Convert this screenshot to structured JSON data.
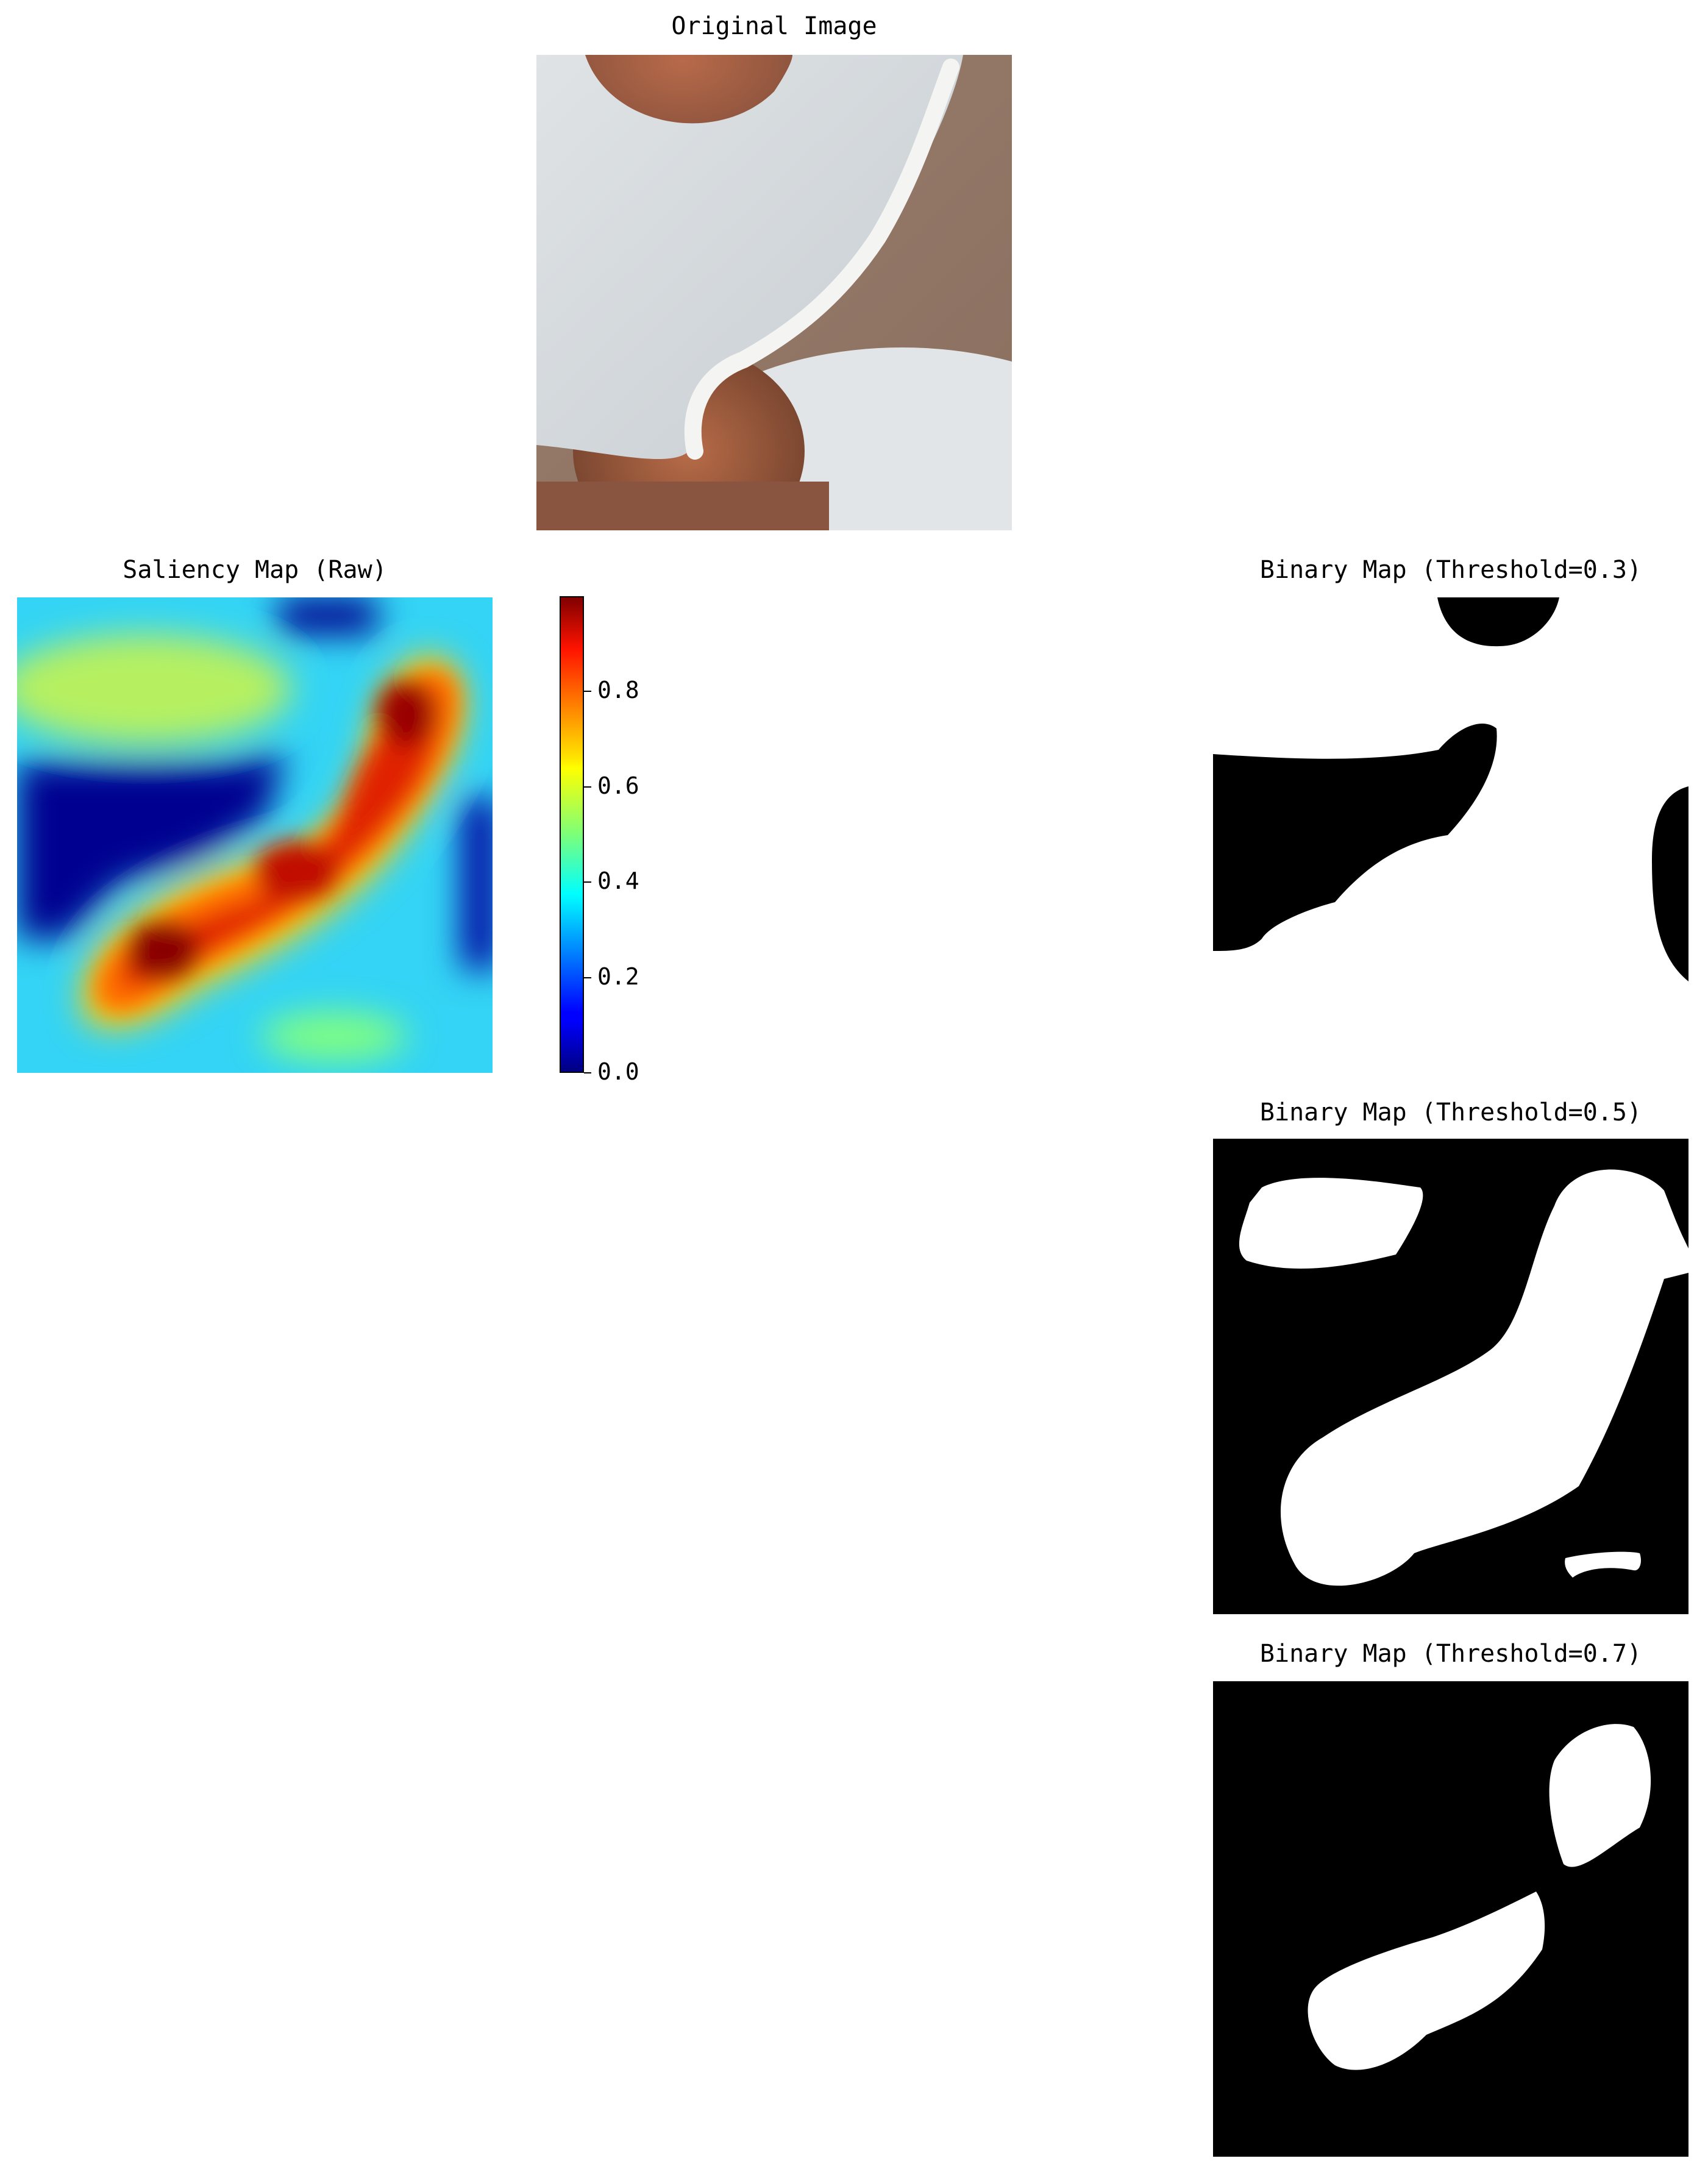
{
  "figure": {
    "original": {
      "title": "Original Image"
    },
    "saliency": {
      "title": "Saliency Map (Raw)"
    },
    "colorbar": {
      "ticks": [
        "0.0",
        "0.2",
        "0.4",
        "0.6",
        "0.8"
      ],
      "range": [
        0.0,
        1.0
      ],
      "colormap": "jet"
    },
    "binary": [
      {
        "title": "Binary Map (Threshold=0.3)"
      },
      {
        "title": "Binary Map (Threshold=0.5)"
      },
      {
        "title": "Binary Map (Threshold=0.7)"
      }
    ]
  }
}
